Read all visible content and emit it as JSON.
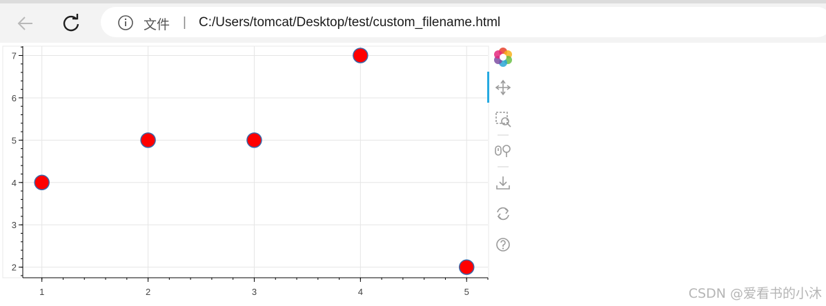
{
  "browser": {
    "file_label": "文件",
    "separator": "|",
    "url": "C:/Users/tomcat/Desktop/test/custom_filename.html"
  },
  "toolbar": {
    "tools": [
      "bokeh-logo-icon",
      "pan-icon",
      "box-zoom-icon",
      "wheel-zoom-icon",
      "save-icon",
      "reset-icon",
      "help-icon"
    ],
    "active_tool": "pan-icon"
  },
  "chart_data": {
    "type": "scatter",
    "x": [
      1,
      2,
      3,
      4,
      5
    ],
    "y": [
      4,
      5,
      5,
      7,
      2
    ],
    "xlim": [
      0.82,
      5.2
    ],
    "ylim": [
      1.75,
      7.22
    ],
    "xticks": [
      1,
      2,
      3,
      4,
      5
    ],
    "yticks": [
      2,
      3,
      4,
      5,
      6,
      7
    ],
    "grid": true,
    "marker_fill": "#ff0000",
    "marker_edge": "#3a67a8"
  },
  "watermark": "CSDN @爱看书的小沐"
}
